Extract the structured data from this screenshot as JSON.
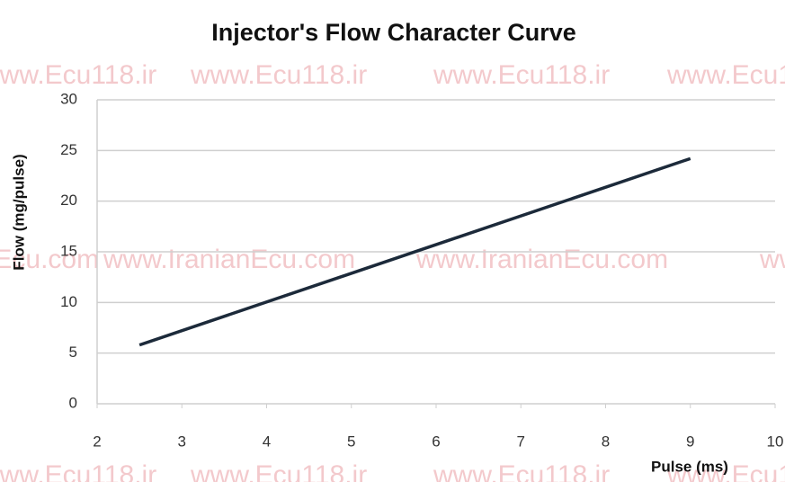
{
  "chart_data": {
    "type": "line",
    "title": "Injector's Flow Character Curve",
    "x_label": "Pulse (ms)",
    "y_label": "Flow (mg/pulse)",
    "x": [
      2.5,
      9
    ],
    "series": [
      {
        "name": "Flow",
        "color": "#1c2a3a",
        "values": [
          5.8,
          24.2
        ]
      }
    ],
    "xlim": [
      2,
      10
    ],
    "xticks": [
      2,
      3,
      4,
      5,
      6,
      7,
      8,
      9,
      10
    ],
    "ylim": [
      0,
      30
    ],
    "yticks": [
      0,
      5,
      10,
      15,
      20,
      25,
      30
    ],
    "grid": true,
    "legend": false,
    "watermarks": [
      "www.Ecu118.ir",
      "www.IranianEcu.com"
    ]
  }
}
